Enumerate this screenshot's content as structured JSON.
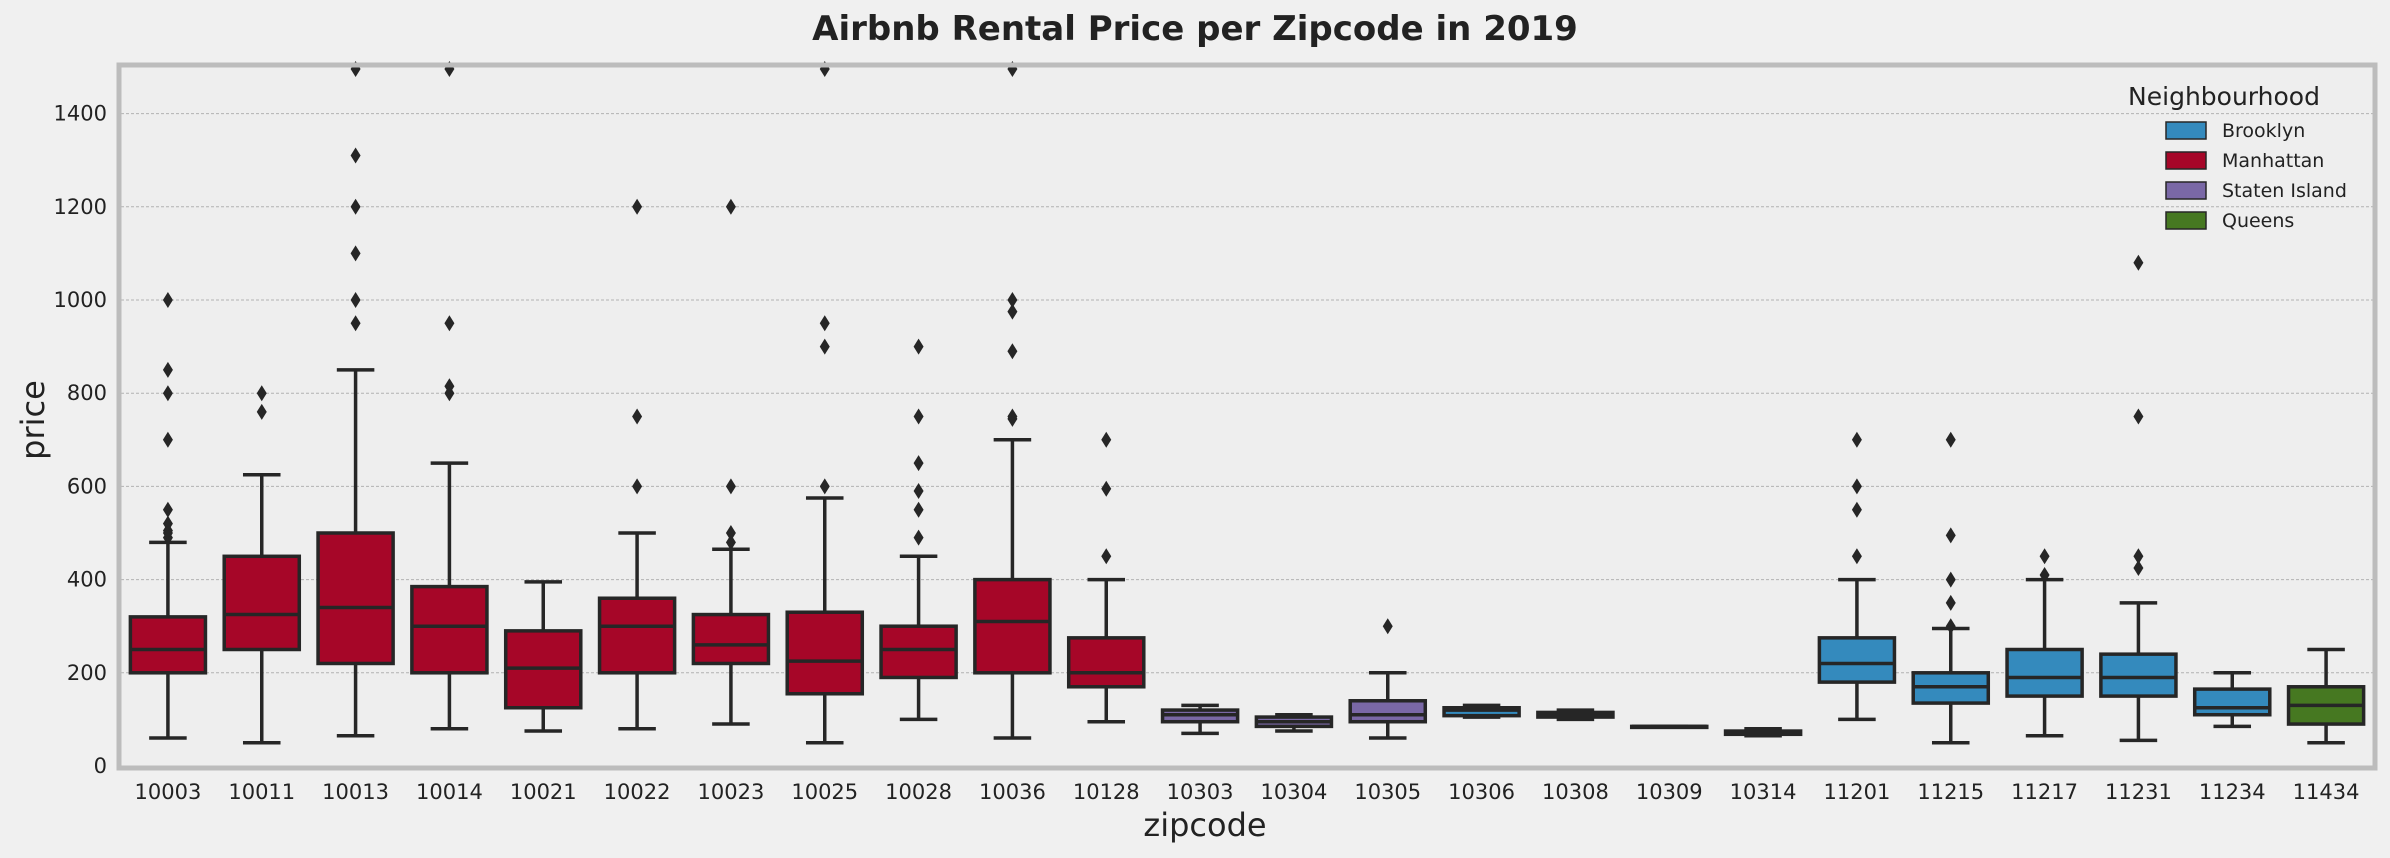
{
  "chart_data": {
    "type": "box",
    "title": "Airbnb Rental Price per Zipcode in 2019",
    "xlabel": "zipcode",
    "ylabel": "price",
    "ylim": [
      0,
      1500
    ],
    "yticks": [
      0,
      200,
      400,
      600,
      800,
      1000,
      1200,
      1400
    ],
    "grid": true,
    "legend": {
      "title": "Neighbourhood",
      "placement": "top-right",
      "entries": [
        {
          "name": "Brooklyn",
          "color": "#348abd"
        },
        {
          "name": "Manhattan",
          "color": "#a60628"
        },
        {
          "name": "Staten Island",
          "color": "#7a68a6"
        },
        {
          "name": "Queens",
          "color": "#467821"
        }
      ]
    },
    "categories": [
      "10003",
      "10011",
      "10013",
      "10014",
      "10021",
      "10022",
      "10023",
      "10025",
      "10028",
      "10036",
      "10128",
      "10303",
      "10304",
      "10305",
      "10306",
      "10308",
      "10309",
      "10314",
      "11201",
      "11215",
      "11217",
      "11231",
      "11234",
      "11434"
    ],
    "boxes": [
      {
        "zipcode": "10003",
        "group": "Manhattan",
        "whislo": 60,
        "q1": 200,
        "med": 250,
        "q3": 320,
        "whishi": 480,
        "fliers": [
          490,
          500,
          505,
          520,
          550,
          700,
          800,
          850,
          1000
        ]
      },
      {
        "zipcode": "10011",
        "group": "Manhattan",
        "whislo": 50,
        "q1": 250,
        "med": 325,
        "q3": 450,
        "whishi": 625,
        "fliers": [
          760,
          800
        ]
      },
      {
        "zipcode": "10013",
        "group": "Manhattan",
        "whislo": 65,
        "q1": 220,
        "med": 340,
        "q3": 500,
        "whishi": 850,
        "fliers": [
          950,
          1000,
          1100,
          1200,
          1310,
          1500
        ]
      },
      {
        "zipcode": "10014",
        "group": "Manhattan",
        "whislo": 80,
        "q1": 200,
        "med": 300,
        "q3": 385,
        "whishi": 650,
        "fliers": [
          800,
          815,
          950,
          1500
        ]
      },
      {
        "zipcode": "10021",
        "group": "Manhattan",
        "whislo": 75,
        "q1": 125,
        "med": 210,
        "q3": 290,
        "whishi": 395,
        "fliers": []
      },
      {
        "zipcode": "10022",
        "group": "Manhattan",
        "whislo": 80,
        "q1": 200,
        "med": 300,
        "q3": 360,
        "whishi": 500,
        "fliers": [
          600,
          750,
          1200
        ]
      },
      {
        "zipcode": "10023",
        "group": "Manhattan",
        "whislo": 90,
        "q1": 220,
        "med": 260,
        "q3": 325,
        "whishi": 465,
        "fliers": [
          480,
          500,
          600,
          1200
        ]
      },
      {
        "zipcode": "10025",
        "group": "Manhattan",
        "whislo": 50,
        "q1": 155,
        "med": 225,
        "q3": 330,
        "whishi": 575,
        "fliers": [
          600,
          900,
          950,
          1500
        ]
      },
      {
        "zipcode": "10028",
        "group": "Manhattan",
        "whislo": 100,
        "q1": 190,
        "med": 250,
        "q3": 300,
        "whishi": 450,
        "fliers": [
          490,
          550,
          590,
          650,
          750,
          900
        ]
      },
      {
        "zipcode": "10036",
        "group": "Manhattan",
        "whislo": 60,
        "q1": 200,
        "med": 310,
        "q3": 400,
        "whishi": 700,
        "fliers": [
          745,
          750,
          890,
          975,
          1000,
          1500
        ]
      },
      {
        "zipcode": "10128",
        "group": "Manhattan",
        "whislo": 95,
        "q1": 170,
        "med": 200,
        "q3": 275,
        "whishi": 400,
        "fliers": [
          450,
          595,
          700
        ]
      },
      {
        "zipcode": "10303",
        "group": "Staten Island",
        "whislo": 70,
        "q1": 95,
        "med": 110,
        "q3": 120,
        "whishi": 130,
        "fliers": []
      },
      {
        "zipcode": "10304",
        "group": "Staten Island",
        "whislo": 75,
        "q1": 85,
        "med": 95,
        "q3": 105,
        "whishi": 110,
        "fliers": []
      },
      {
        "zipcode": "10305",
        "group": "Staten Island",
        "whislo": 60,
        "q1": 95,
        "med": 110,
        "q3": 140,
        "whishi": 200,
        "fliers": [
          300
        ]
      },
      {
        "zipcode": "10306",
        "group": "Brooklyn",
        "whislo": 105,
        "q1": 108,
        "med": 120,
        "q3": 125,
        "whishi": 130,
        "fliers": []
      },
      {
        "zipcode": "10308",
        "group": "Brooklyn",
        "whislo": 100,
        "q1": 105,
        "med": 110,
        "q3": 115,
        "whishi": 120,
        "fliers": []
      },
      {
        "zipcode": "10309",
        "group": "Brooklyn",
        "whislo": 85,
        "q1": 85,
        "med": 85,
        "q3": 85,
        "whishi": 85,
        "fliers": []
      },
      {
        "zipcode": "10314",
        "group": "Brooklyn",
        "whislo": 65,
        "q1": 68,
        "med": 72,
        "q3": 75,
        "whishi": 80,
        "fliers": []
      },
      {
        "zipcode": "11201",
        "group": "Brooklyn",
        "whislo": 100,
        "q1": 180,
        "med": 220,
        "q3": 275,
        "whishi": 400,
        "fliers": [
          450,
          550,
          600,
          700
        ]
      },
      {
        "zipcode": "11215",
        "group": "Brooklyn",
        "whislo": 50,
        "q1": 135,
        "med": 170,
        "q3": 200,
        "whishi": 295,
        "fliers": [
          300,
          350,
          400,
          495,
          700
        ]
      },
      {
        "zipcode": "11217",
        "group": "Brooklyn",
        "whislo": 65,
        "q1": 150,
        "med": 190,
        "q3": 250,
        "whishi": 400,
        "fliers": [
          410,
          450
        ]
      },
      {
        "zipcode": "11231",
        "group": "Brooklyn",
        "whislo": 55,
        "q1": 150,
        "med": 190,
        "q3": 240,
        "whishi": 350,
        "fliers": [
          425,
          450,
          750,
          1080
        ]
      },
      {
        "zipcode": "11234",
        "group": "Brooklyn",
        "whislo": 85,
        "q1": 110,
        "med": 125,
        "q3": 165,
        "whishi": 200,
        "fliers": []
      },
      {
        "zipcode": "11434",
        "group": "Queens",
        "whislo": 50,
        "q1": 90,
        "med": 130,
        "q3": 170,
        "whishi": 250,
        "fliers": []
      }
    ]
  }
}
